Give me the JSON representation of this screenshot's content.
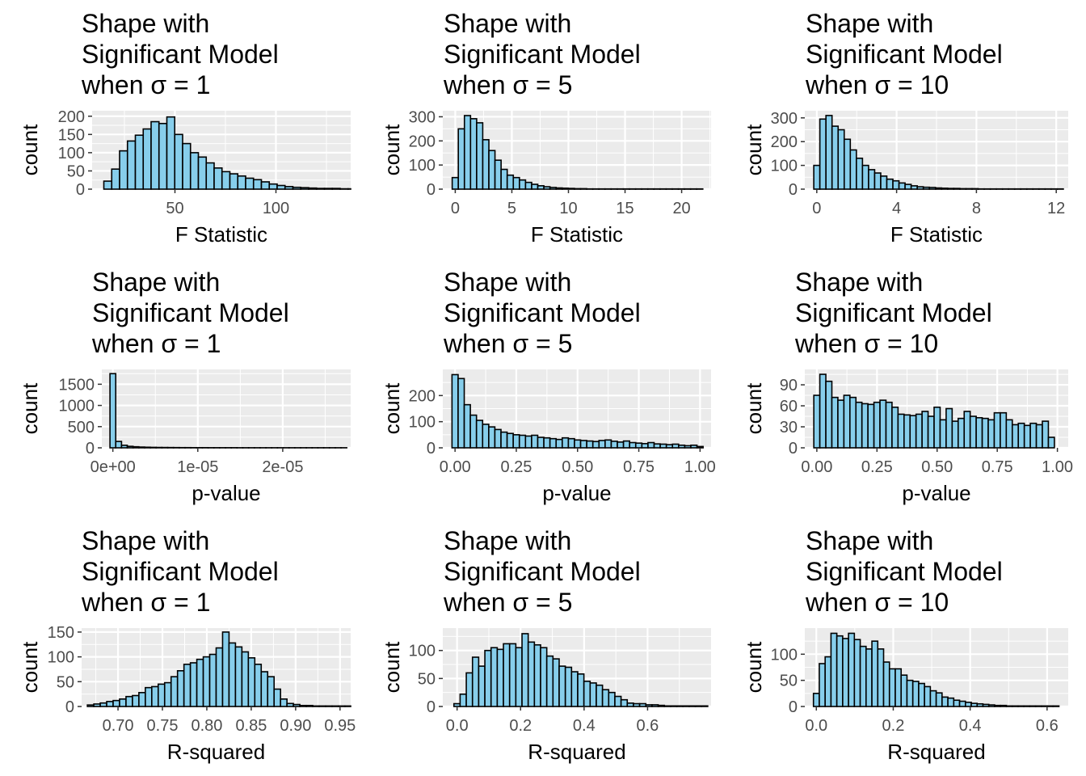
{
  "style": {
    "panel_bg": "#ebebeb",
    "grid_major": "#ffffff",
    "bar_fill": "#87ceeb",
    "bar_stroke": "#000000",
    "tick_color": "#333333"
  },
  "chart_data": [
    {
      "type": "bar",
      "title": [
        "Shape with",
        "Significant Model",
        "when σ = 1"
      ],
      "xlabel": "F Statistic",
      "ylabel": "count",
      "xlim": [
        9,
        137
      ],
      "ylim": [
        0,
        215
      ],
      "xticks": [
        {
          "v": 50,
          "label": "50"
        },
        {
          "v": 100,
          "label": "100"
        }
      ],
      "yticks": [
        {
          "v": 0,
          "label": "0"
        },
        {
          "v": 50,
          "label": "50"
        },
        {
          "v": 100,
          "label": "100"
        },
        {
          "v": 150,
          "label": "150"
        },
        {
          "v": 200,
          "label": "200"
        }
      ],
      "bin_start": 14.8,
      "bin_width": 3.9,
      "values": [
        22,
        55,
        105,
        132,
        148,
        165,
        185,
        180,
        198,
        150,
        125,
        100,
        88,
        72,
        58,
        48,
        42,
        36,
        30,
        26,
        20,
        14,
        10,
        7,
        5,
        4,
        3,
        2,
        2,
        2,
        1,
        1,
        1,
        1,
        1,
        1,
        1,
        1,
        1,
        1
      ]
    },
    {
      "type": "bar",
      "title": [
        "Shape with",
        "Significant Model",
        "when σ = 5"
      ],
      "xlabel": "F Statistic",
      "ylabel": "count",
      "xlim": [
        -1.1,
        22.6
      ],
      "ylim": [
        0,
        325
      ],
      "xticks": [
        {
          "v": 0,
          "label": "0"
        },
        {
          "v": 5,
          "label": "5"
        },
        {
          "v": 10,
          "label": "10"
        },
        {
          "v": 15,
          "label": "15"
        },
        {
          "v": 20,
          "label": "20"
        }
      ],
      "yticks": [
        {
          "v": 0,
          "label": "0"
        },
        {
          "v": 100,
          "label": "100"
        },
        {
          "v": 200,
          "label": "200"
        },
        {
          "v": 300,
          "label": "300"
        }
      ],
      "bin_start": -0.27,
      "bin_width": 0.54,
      "values": [
        48,
        250,
        305,
        292,
        275,
        205,
        160,
        120,
        82,
        58,
        48,
        38,
        28,
        20,
        14,
        10,
        7,
        5,
        4,
        3,
        2,
        2,
        1,
        1,
        1,
        1,
        1,
        1,
        1,
        1,
        1,
        1,
        1,
        1,
        1,
        1,
        1,
        1,
        1,
        1,
        1
      ]
    },
    {
      "type": "bar",
      "title": [
        "Shape with",
        "Significant Model",
        "when σ = 10"
      ],
      "xlabel": "F Statistic",
      "ylabel": "count",
      "xlim": [
        -0.6,
        12.6
      ],
      "ylim": [
        0,
        330
      ],
      "xticks": [
        {
          "v": 0,
          "label": "0"
        },
        {
          "v": 4,
          "label": "4"
        },
        {
          "v": 8,
          "label": "8"
        },
        {
          "v": 12,
          "label": "12"
        }
      ],
      "yticks": [
        {
          "v": 0,
          "label": "0"
        },
        {
          "v": 100,
          "label": "100"
        },
        {
          "v": 200,
          "label": "200"
        },
        {
          "v": 300,
          "label": "300"
        }
      ],
      "bin_start": -0.15,
      "bin_width": 0.305,
      "values": [
        100,
        295,
        310,
        265,
        250,
        210,
        165,
        130,
        100,
        82,
        68,
        55,
        42,
        35,
        26,
        20,
        14,
        10,
        8,
        7,
        5,
        4,
        3,
        3,
        2,
        2,
        2,
        1,
        1,
        1,
        1,
        1,
        1,
        1,
        1,
        1,
        1,
        1,
        1,
        1,
        1
      ]
    },
    {
      "type": "bar",
      "title": [
        "Shape with",
        "Significant Model",
        "when σ = 1"
      ],
      "xlabel": "p-value",
      "ylabel": "count",
      "xlim": [
        -1.3e-06,
        2.8e-05
      ],
      "ylim": [
        0,
        1850
      ],
      "xticks": [
        {
          "v": 0,
          "label": "0e+00"
        },
        {
          "v": 1e-05,
          "label": "1e-05"
        },
        {
          "v": 2e-05,
          "label": "2e-05"
        }
      ],
      "yticks": [
        {
          "v": 0,
          "label": "0"
        },
        {
          "v": 500,
          "label": "500"
        },
        {
          "v": 1000,
          "label": "1000"
        },
        {
          "v": 1500,
          "label": "1500"
        }
      ],
      "bin_start": -3.4e-07,
      "bin_width": 6.8e-07,
      "values": [
        1750,
        150,
        60,
        35,
        25,
        18,
        14,
        11,
        9,
        8,
        7,
        6,
        5,
        5,
        4,
        4,
        4,
        3,
        3,
        3,
        3,
        3,
        2,
        2,
        2,
        2,
        2,
        2,
        2,
        2,
        2,
        2,
        2,
        2,
        2,
        2,
        2,
        2,
        2,
        2,
        2
      ]
    },
    {
      "type": "bar",
      "title": [
        "Shape with",
        "Significant Model",
        "when σ = 5"
      ],
      "xlabel": "p-value",
      "ylabel": "count",
      "xlim": [
        -0.05,
        1.045
      ],
      "ylim": [
        0,
        300
      ],
      "xticks": [
        {
          "v": 0,
          "label": "0.00"
        },
        {
          "v": 0.25,
          "label": "0.25"
        },
        {
          "v": 0.5,
          "label": "0.50"
        },
        {
          "v": 0.75,
          "label": "0.75"
        },
        {
          "v": 1,
          "label": "1.00"
        }
      ],
      "yticks": [
        {
          "v": 0,
          "label": "0"
        },
        {
          "v": 100,
          "label": "100"
        },
        {
          "v": 200,
          "label": "200"
        }
      ],
      "bin_start": -0.0125,
      "bin_width": 0.025,
      "values": [
        280,
        265,
        165,
        125,
        105,
        90,
        80,
        70,
        60,
        55,
        50,
        48,
        45,
        48,
        40,
        38,
        35,
        32,
        38,
        35,
        30,
        28,
        26,
        24,
        28,
        30,
        25,
        22,
        26,
        20,
        18,
        16,
        20,
        15,
        14,
        12,
        14,
        10,
        8,
        10,
        5
      ]
    },
    {
      "type": "bar",
      "title": [
        "Shape with",
        "Significant Model",
        "when σ = 10"
      ],
      "xlabel": "p-value",
      "ylabel": "count",
      "xlim": [
        -0.05,
        1.045
      ],
      "ylim": [
        0,
        112
      ],
      "xticks": [
        {
          "v": 0,
          "label": "0.00"
        },
        {
          "v": 0.25,
          "label": "0.25"
        },
        {
          "v": 0.5,
          "label": "0.50"
        },
        {
          "v": 0.75,
          "label": "0.75"
        },
        {
          "v": 1,
          "label": "1.00"
        }
      ],
      "yticks": [
        {
          "v": 0,
          "label": "0"
        },
        {
          "v": 30,
          "label": "30"
        },
        {
          "v": 60,
          "label": "60"
        },
        {
          "v": 90,
          "label": "90"
        }
      ],
      "bin_start": -0.0125,
      "bin_width": 0.025,
      "values": [
        75,
        105,
        95,
        72,
        68,
        75,
        72,
        65,
        63,
        62,
        65,
        68,
        65,
        58,
        48,
        47,
        46,
        48,
        52,
        45,
        58,
        40,
        56,
        38,
        42,
        52,
        45,
        43,
        42,
        40,
        50,
        50,
        40,
        33,
        35,
        32,
        35,
        33,
        38,
        15
      ]
    },
    {
      "type": "bar",
      "title": [
        "Shape with",
        "Significant Model",
        "when σ = 1"
      ],
      "xlabel": "R-squared",
      "ylabel": "count",
      "xlim": [
        0.659,
        0.962
      ],
      "ylim": [
        0,
        158
      ],
      "xticks": [
        {
          "v": 0.7,
          "label": "0.70"
        },
        {
          "v": 0.75,
          "label": "0.75"
        },
        {
          "v": 0.8,
          "label": "0.80"
        },
        {
          "v": 0.85,
          "label": "0.85"
        },
        {
          "v": 0.9,
          "label": "0.90"
        },
        {
          "v": 0.95,
          "label": "0.95"
        }
      ],
      "yticks": [
        {
          "v": 0,
          "label": "0"
        },
        {
          "v": 50,
          "label": "50"
        },
        {
          "v": 100,
          "label": "100"
        },
        {
          "v": 150,
          "label": "150"
        }
      ],
      "bin_start": 0.6655,
      "bin_width": 0.00725,
      "values": [
        3,
        5,
        7,
        10,
        12,
        15,
        20,
        22,
        28,
        38,
        40,
        45,
        48,
        60,
        72,
        85,
        88,
        95,
        100,
        105,
        118,
        150,
        128,
        120,
        110,
        98,
        85,
        70,
        60,
        35,
        15,
        6,
        4,
        2,
        2,
        1,
        1,
        1,
        1,
        1,
        1
      ]
    },
    {
      "type": "bar",
      "title": [
        "Shape with",
        "Significant Model",
        "when σ = 5"
      ],
      "xlabel": "R-squared",
      "ylabel": "count",
      "xlim": [
        -0.045,
        0.8
      ],
      "ylim": [
        0,
        140
      ],
      "xticks": [
        {
          "v": 0,
          "label": "0.0"
        },
        {
          "v": 0.2,
          "label": "0.2"
        },
        {
          "v": 0.4,
          "label": "0.4"
        },
        {
          "v": 0.6,
          "label": "0.6"
        }
      ],
      "yticks": [
        {
          "v": 0,
          "label": "0"
        },
        {
          "v": 50,
          "label": "50"
        },
        {
          "v": 100,
          "label": "100"
        }
      ],
      "bin_start": -0.01,
      "bin_width": 0.0195,
      "values": [
        5,
        22,
        60,
        88,
        72,
        100,
        105,
        102,
        112,
        112,
        105,
        130,
        115,
        110,
        105,
        90,
        85,
        72,
        70,
        62,
        58,
        45,
        42,
        38,
        30,
        25,
        18,
        12,
        6,
        5,
        5,
        3,
        3,
        2,
        1,
        1,
        1,
        1,
        1,
        1,
        1
      ]
    },
    {
      "type": "bar",
      "title": [
        "Shape with",
        "Significant Model",
        "when σ = 10"
      ],
      "xlabel": "R-squared",
      "ylabel": "count",
      "xlim": [
        -0.03,
        0.655
      ],
      "ylim": [
        0,
        150
      ],
      "xticks": [
        {
          "v": 0,
          "label": "0.0"
        },
        {
          "v": 0.2,
          "label": "0.2"
        },
        {
          "v": 0.4,
          "label": "0.4"
        },
        {
          "v": 0.6,
          "label": "0.6"
        }
      ],
      "yticks": [
        {
          "v": 0,
          "label": "0"
        },
        {
          "v": 50,
          "label": "50"
        },
        {
          "v": 100,
          "label": "100"
        }
      ],
      "bin_start": -0.0075,
      "bin_width": 0.0152,
      "values": [
        25,
        82,
        95,
        140,
        135,
        130,
        140,
        128,
        115,
        110,
        125,
        110,
        85,
        72,
        72,
        60,
        50,
        48,
        44,
        38,
        30,
        26,
        18,
        16,
        12,
        10,
        8,
        6,
        5,
        4,
        3,
        2,
        2,
        1,
        1,
        1,
        1,
        1,
        1,
        1,
        1,
        1
      ]
    }
  ]
}
